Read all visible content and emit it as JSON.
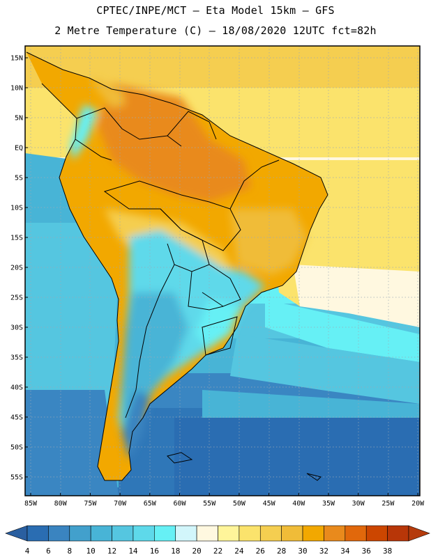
{
  "header": {
    "title_line1": "CPTEC/INPE/MCT –  Eta Model 15km – GFS",
    "title_line2": "2 Metre Temperature (C) – 18/08/2020 12UTC fct=82h"
  },
  "map": {
    "lat_labels": [
      "15N",
      "10N",
      "5N",
      "EQ",
      "5S",
      "10S",
      "15S",
      "20S",
      "25S",
      "30S",
      "35S",
      "40S",
      "45S",
      "50S",
      "55S"
    ],
    "lon_labels": [
      "85W",
      "80W",
      "75W",
      "70W",
      "65W",
      "60W",
      "55W",
      "50W",
      "45W",
      "40W",
      "35W",
      "30W",
      "25W",
      "20W"
    ],
    "grid": "dotted"
  },
  "colorbar": {
    "labels": [
      "4",
      "6",
      "8",
      "10",
      "12",
      "14",
      "16",
      "18",
      "20",
      "22",
      "24",
      "26",
      "28",
      "30",
      "32",
      "34",
      "36",
      "38"
    ],
    "colors": [
      "#2a6db2",
      "#3a84c0",
      "#42a0cc",
      "#48b4d6",
      "#55c6e0",
      "#5ed9ea",
      "#66f0f5",
      "#d2f6fb",
      "#fff8e0",
      "#fff59a",
      "#fbe36c",
      "#f5ce50",
      "#f0bc38",
      "#f2a800",
      "#e98a1c",
      "#e1680b",
      "#cc4600",
      "#b83608"
    ],
    "low_arrow_color": "#2a5fa0",
    "high_arrow_color": "#b53b0c"
  }
}
